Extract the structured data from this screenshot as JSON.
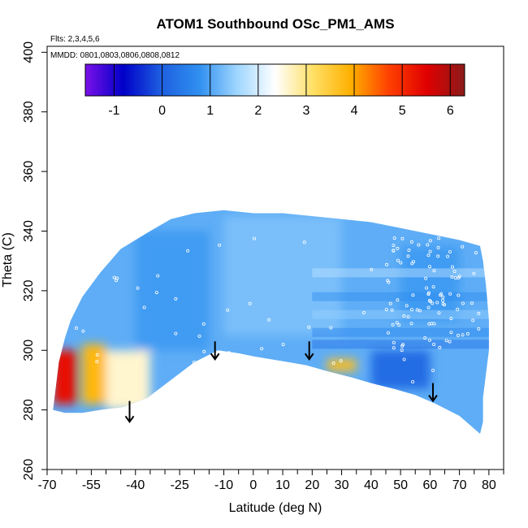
{
  "chart_data": {
    "type": "heatmap",
    "title": "ATOM1 Southbound OSc_PM1_AMS",
    "flights_note": "Flts: 2,3,4,5,6",
    "dates_note": "MMDD: 0801,0803,0806,0808,0812",
    "xlabel": "Latitude (deg N)",
    "ylabel": "Theta (C)",
    "xlim": [
      -70,
      85
    ],
    "ylim": [
      260,
      402
    ],
    "x_ticks": [
      -70,
      -55,
      -40,
      -25,
      -10,
      0,
      10,
      20,
      30,
      40,
      50,
      60,
      70,
      80
    ],
    "x_minor_ticks": [
      -65,
      -60,
      -50,
      -45,
      -35,
      -30,
      -20,
      -15,
      -5,
      5,
      15,
      25,
      35,
      45,
      55,
      65,
      75,
      85
    ],
    "y_ticks": [
      260,
      280,
      300,
      320,
      340,
      360,
      380,
      400
    ],
    "colorbar": {
      "range": [
        -1.6,
        6.3
      ],
      "ticks": [
        -1,
        0,
        1,
        2,
        3,
        4,
        5,
        6
      ],
      "colors": [
        "#7a10e8",
        "#0000c8",
        "#1e5fe0",
        "#2f8ff0",
        "#9fd6ff",
        "#ffffff",
        "#ffe066",
        "#ffb000",
        "#ff4000",
        "#e00000",
        "#8b1a1a"
      ]
    },
    "arrows_latitude": [
      -42,
      -13,
      19,
      61
    ],
    "field_description_regions": [
      {
        "lat": [
          -68,
          -60
        ],
        "theta": [
          282,
          300
        ],
        "value": 5.3
      },
      {
        "lat": [
          -58,
          -50
        ],
        "theta": [
          282,
          302
        ],
        "value": 3.8
      },
      {
        "lat": [
          -50,
          -35
        ],
        "theta": [
          280,
          300
        ],
        "value": 2.6
      },
      {
        "lat": [
          -40,
          -15
        ],
        "theta": [
          300,
          340
        ],
        "value": 0.9
      },
      {
        "lat": [
          -10,
          30
        ],
        "theta": [
          305,
          345
        ],
        "value": 1.3
      },
      {
        "lat": [
          25,
          35
        ],
        "theta": [
          293,
          297
        ],
        "value": 3.7
      },
      {
        "lat": [
          40,
          60
        ],
        "theta": [
          287,
          300
        ],
        "value": 0.2
      },
      {
        "lat": [
          50,
          70
        ],
        "theta": [
          310,
          335
        ],
        "value": 0.9
      }
    ]
  }
}
